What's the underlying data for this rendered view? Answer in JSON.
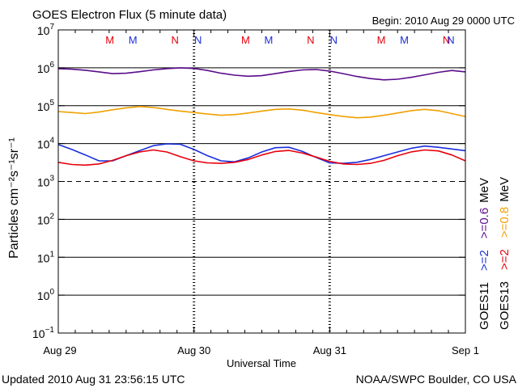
{
  "chart_data": {
    "type": "line",
    "title": "GOES Electron Flux (5 minute data)",
    "begin_label": "Begin: 2010 Aug 29 0000 UTC",
    "xlabel": "Universal Time",
    "ylabel": "Particles cm⁻²s⁻¹sr⁻¹",
    "updated": "Updated 2010 Aug 31 23:56:15 UTC",
    "source": "NOAA/SWPC Boulder, CO USA",
    "x_ticks": [
      "Aug 29",
      "Aug 30",
      "Aug 31",
      "Sep 1"
    ],
    "xlim_days": [
      0,
      3
    ],
    "y_scale": "log",
    "ylim": [
      0.1,
      10000000
    ],
    "y_ticks": [
      {
        "base": "10",
        "exp": "7"
      },
      {
        "base": "10",
        "exp": "6"
      },
      {
        "base": "10",
        "exp": "5"
      },
      {
        "base": "10",
        "exp": "4"
      },
      {
        "base": "10",
        "exp": "3"
      },
      {
        "base": "10",
        "exp": "2"
      },
      {
        "base": "10",
        "exp": "1"
      },
      {
        "base": "10",
        "exp": "0"
      },
      {
        "base": "10",
        "exp": "−1"
      }
    ],
    "threshold": 1000,
    "markers": [
      {
        "label": "M",
        "day": 0.38,
        "color": "#e8000b"
      },
      {
        "label": "M",
        "day": 0.55,
        "color": "#1a2edc"
      },
      {
        "label": "N",
        "day": 0.86,
        "color": "#e8000b"
      },
      {
        "label": "N",
        "day": 1.03,
        "color": "#1a2edc"
      },
      {
        "label": "M",
        "day": 1.38,
        "color": "#e8000b"
      },
      {
        "label": "M",
        "day": 1.55,
        "color": "#1a2edc"
      },
      {
        "label": "N",
        "day": 1.86,
        "color": "#e8000b"
      },
      {
        "label": "N",
        "day": 2.03,
        "color": "#1a2edc"
      },
      {
        "label": "M",
        "day": 2.38,
        "color": "#e8000b"
      },
      {
        "label": "M",
        "day": 2.55,
        "color": "#1a2edc"
      },
      {
        "label": "N",
        "day": 2.86,
        "color": "#e8000b"
      },
      {
        "label": "N",
        "day": 3.03,
        "color": "#1a2edc"
      }
    ],
    "legend": {
      "goes11": {
        "name": "GOES11",
        "entries": [
          {
            "text": ">=2",
            "color": "#1a2edc"
          },
          {
            "text": ">=0.6",
            "color": "#5a0c8c"
          },
          {
            "text": "MeV",
            "color": "#000000"
          }
        ]
      },
      "goes13": {
        "name": "GOES13",
        "entries": [
          {
            "text": ">=2",
            "color": "#e8000b"
          },
          {
            "text": ">=0.8",
            "color": "#f0a000"
          },
          {
            "text": "MeV",
            "color": "#000000"
          }
        ]
      }
    },
    "series": [
      {
        "color": "#5a0c8c",
        "x": [
          0,
          0.1,
          0.2,
          0.3,
          0.4,
          0.5,
          0.6,
          0.7,
          0.8,
          0.9,
          1.0,
          1.1,
          1.2,
          1.3,
          1.4,
          1.5,
          1.6,
          1.7,
          1.8,
          1.9,
          2.0,
          2.1,
          2.2,
          2.3,
          2.4,
          2.5,
          2.6,
          2.7,
          2.8,
          2.9,
          3.0
        ],
        "y": [
          950000,
          920000,
          860000,
          780000,
          700000,
          720000,
          790000,
          880000,
          950000,
          1000000,
          960000,
          850000,
          720000,
          640000,
          600000,
          620000,
          700000,
          800000,
          880000,
          900000,
          820000,
          700000,
          590000,
          520000,
          480000,
          500000,
          560000,
          650000,
          760000,
          850000,
          780000
        ]
      },
      {
        "color": "#f0a000",
        "x": [
          0,
          0.1,
          0.2,
          0.3,
          0.4,
          0.5,
          0.6,
          0.7,
          0.8,
          0.9,
          1.0,
          1.1,
          1.2,
          1.3,
          1.4,
          1.5,
          1.6,
          1.7,
          1.8,
          1.9,
          2.0,
          2.1,
          2.2,
          2.3,
          2.4,
          2.5,
          2.6,
          2.7,
          2.8,
          2.9,
          3.0
        ],
        "y": [
          70000,
          66000,
          62000,
          68000,
          78000,
          88000,
          95000,
          90000,
          80000,
          72000,
          66000,
          60000,
          56000,
          58000,
          64000,
          72000,
          80000,
          82000,
          76000,
          66000,
          58000,
          52000,
          48000,
          50000,
          56000,
          64000,
          74000,
          80000,
          74000,
          62000,
          52000
        ]
      },
      {
        "color": "#1a2edc",
        "x": [
          0,
          0.1,
          0.2,
          0.3,
          0.4,
          0.5,
          0.6,
          0.7,
          0.8,
          0.9,
          1.0,
          1.1,
          1.2,
          1.3,
          1.4,
          1.5,
          1.6,
          1.7,
          1.8,
          1.9,
          2.0,
          2.1,
          2.2,
          2.3,
          2.4,
          2.5,
          2.6,
          2.7,
          2.8,
          2.9,
          3.0
        ],
        "y": [
          9500,
          7000,
          5000,
          3500,
          3500,
          4800,
          6500,
          8800,
          9800,
          9600,
          7000,
          4800,
          3500,
          3300,
          4200,
          6000,
          7800,
          8000,
          6200,
          4300,
          3100,
          3000,
          3200,
          3800,
          4800,
          6000,
          7500,
          8600,
          8000,
          7200,
          6500
        ]
      },
      {
        "color": "#e8000b",
        "x": [
          0,
          0.1,
          0.2,
          0.3,
          0.4,
          0.5,
          0.6,
          0.7,
          0.8,
          0.9,
          1.0,
          1.1,
          1.2,
          1.3,
          1.4,
          1.5,
          1.6,
          1.7,
          1.8,
          1.9,
          2.0,
          2.1,
          2.2,
          2.3,
          2.4,
          2.5,
          2.6,
          2.7,
          2.8,
          2.9,
          3.0
        ],
        "y": [
          3200,
          2800,
          2700,
          2900,
          3600,
          4800,
          6000,
          6800,
          6000,
          4500,
          3500,
          3100,
          3000,
          3200,
          3800,
          5000,
          6200,
          6600,
          5600,
          4400,
          3400,
          2900,
          2800,
          3000,
          3600,
          4800,
          6000,
          6800,
          6400,
          5000,
          3500
        ]
      }
    ]
  }
}
